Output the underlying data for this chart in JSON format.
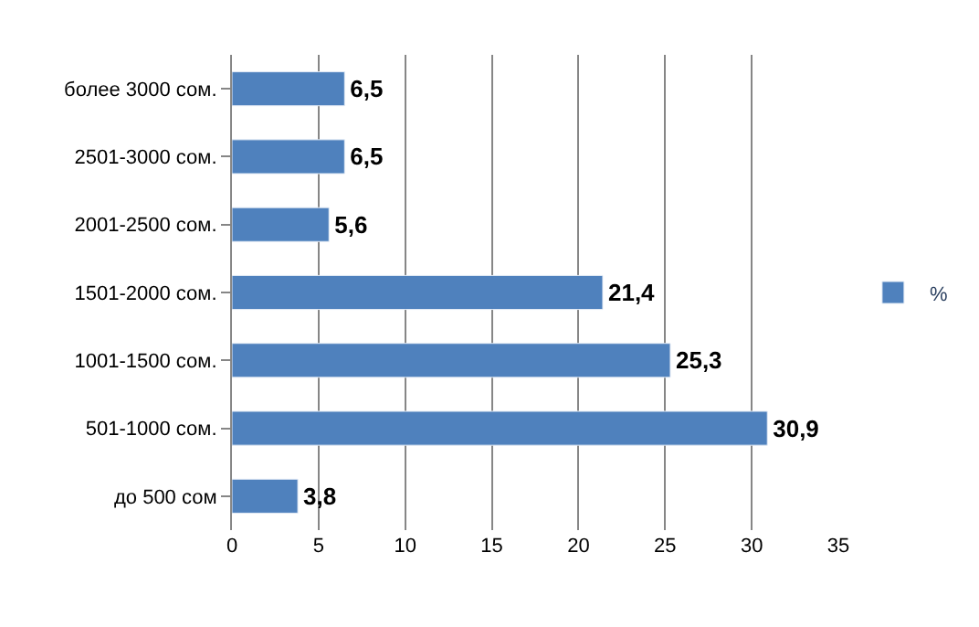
{
  "chart_data": {
    "type": "bar",
    "orientation": "horizontal",
    "categories": [
      "более 3000 сом.",
      "2501-3000 сом.",
      "2001-2500 сом.",
      "1501-2000 сом.",
      "1001-1500 сом.",
      "501-1000 сом.",
      "до 500 сом"
    ],
    "series": [
      {
        "name": "%",
        "color": "#4f81bd",
        "values": [
          6.5,
          6.5,
          5.6,
          21.4,
          25.3,
          30.9,
          3.8
        ],
        "value_labels": [
          "6,5",
          "6,5",
          "5,6",
          "21,4",
          "25,3",
          "30,9",
          "3,8"
        ]
      }
    ],
    "xlim": [
      0,
      35
    ],
    "xticks": [
      0,
      5,
      10,
      15,
      20,
      25,
      30,
      35
    ],
    "grid": "x",
    "legend": "right"
  }
}
